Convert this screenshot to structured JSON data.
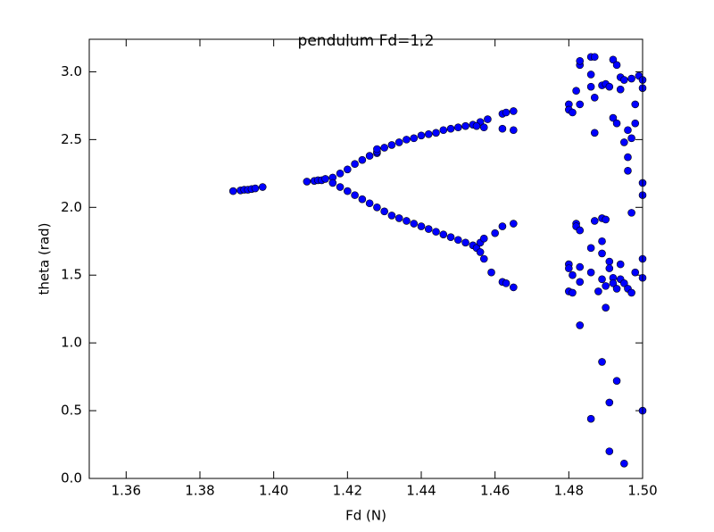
{
  "chart_data": {
    "type": "scatter",
    "title": "pendulum Fd=1.2",
    "x_label": "Fd (N)",
    "y_label": "theta (rad)",
    "xlim": [
      1.35,
      1.5
    ],
    "ylim": [
      0,
      3.24
    ],
    "xticks": [
      1.36,
      1.38,
      {
        "value": 1.4,
        "label": "1.40"
      },
      1.42,
      1.44,
      1.46,
      1.48,
      {
        "value": 1.5,
        "label": "1.50"
      }
    ],
    "yticks": [
      {
        "value": 0,
        "label": "0.0"
      },
      0.5,
      {
        "value": 1,
        "label": "1.0"
      },
      1.5,
      {
        "value": 2,
        "label": "2.0"
      },
      2.5,
      {
        "value": 3,
        "label": "3.0"
      }
    ],
    "color": "#0000ff",
    "x": [
      1.389,
      1.391,
      1.392,
      1.393,
      1.394,
      1.395,
      1.397,
      1.409,
      1.411,
      1.412,
      1.413,
      1.414,
      1.416,
      1.418,
      1.42,
      1.422,
      1.424,
      1.426,
      1.428,
      1.428,
      1.428,
      1.43,
      1.432,
      1.434,
      1.436,
      1.438,
      1.44,
      1.442,
      1.444,
      1.446,
      1.448,
      1.45,
      1.452,
      1.454,
      1.456,
      1.458,
      1.462,
      1.463,
      1.465,
      1.455,
      1.457,
      1.462,
      1.465,
      1.416,
      1.418,
      1.42,
      1.422,
      1.424,
      1.426,
      1.428,
      1.43,
      1.432,
      1.434,
      1.436,
      1.438,
      1.44,
      1.442,
      1.444,
      1.446,
      1.448,
      1.45,
      1.452,
      1.454,
      1.455,
      1.456,
      1.457,
      1.46,
      1.462,
      1.465,
      1.456,
      1.457,
      1.459,
      1.462,
      1.463,
      1.465,
      1.48,
      1.48,
      1.481,
      1.482,
      1.483,
      1.483,
      1.483,
      1.486,
      1.487,
      1.486,
      1.486,
      1.487,
      1.487,
      1.489,
      1.49,
      1.491,
      1.492,
      1.493,
      1.492,
      1.493,
      1.494,
      1.495,
      1.494,
      1.495,
      1.496,
      1.496,
      1.496,
      1.497,
      1.498,
      1.498,
      1.497,
      1.499,
      1.5,
      1.5,
      1.5,
      1.5,
      1.482,
      1.482,
      1.483,
      1.48,
      1.48,
      1.481,
      1.48,
      1.481,
      1.483,
      1.483,
      1.483,
      1.486,
      1.486,
      1.487,
      1.488,
      1.489,
      1.49,
      1.489,
      1.489,
      1.489,
      1.49,
      1.49,
      1.491,
      1.491,
      1.492,
      1.492,
      1.493,
      1.494,
      1.494,
      1.495,
      1.496,
      1.497,
      1.497,
      1.498,
      1.5,
      1.5,
      1.489,
      1.486,
      1.491,
      1.493,
      1.491,
      1.495,
      1.5
    ],
    "values": [
      2.12,
      2.125,
      2.13,
      2.13,
      2.135,
      2.14,
      2.15,
      2.19,
      2.195,
      2.2,
      2.2,
      2.21,
      2.22,
      2.25,
      2.28,
      2.32,
      2.35,
      2.38,
      2.4,
      2.41,
      2.43,
      2.44,
      2.46,
      2.48,
      2.5,
      2.51,
      2.53,
      2.54,
      2.55,
      2.57,
      2.58,
      2.59,
      2.6,
      2.61,
      2.63,
      2.65,
      2.69,
      2.7,
      2.71,
      2.6,
      2.59,
      2.58,
      2.57,
      2.18,
      2.15,
      2.12,
      2.09,
      2.06,
      2.03,
      2,
      1.97,
      1.94,
      1.92,
      1.9,
      1.88,
      1.86,
      1.84,
      1.82,
      1.8,
      1.78,
      1.76,
      1.74,
      1.72,
      1.7,
      1.74,
      1.77,
      1.81,
      1.86,
      1.88,
      1.67,
      1.62,
      1.52,
      1.45,
      1.44,
      1.41,
      2.76,
      2.72,
      2.7,
      2.86,
      3.05,
      3.08,
      2.76,
      3.11,
      3.11,
      2.98,
      2.89,
      2.81,
      2.55,
      2.9,
      2.91,
      2.89,
      3.09,
      3.05,
      2.66,
      2.62,
      2.96,
      2.94,
      2.87,
      2.48,
      2.57,
      2.37,
      2.27,
      2.51,
      2.76,
      2.62,
      2.95,
      2.97,
      2.94,
      2.88,
      2.18,
      2.09,
      1.88,
      1.86,
      1.83,
      1.58,
      1.55,
      1.5,
      1.38,
      1.37,
      1.56,
      1.45,
      1.13,
      1.7,
      1.52,
      1.9,
      1.38,
      1.92,
      1.91,
      1.75,
      1.66,
      1.47,
      1.42,
      1.26,
      1.6,
      1.55,
      1.48,
      1.44,
      1.4,
      1.58,
      1.47,
      1.44,
      1.4,
      1.37,
      1.96,
      1.52,
      1.62,
      1.48,
      0.86,
      0.44,
      0.56,
      0.72,
      0.2,
      0.11,
      0.5
    ]
  }
}
